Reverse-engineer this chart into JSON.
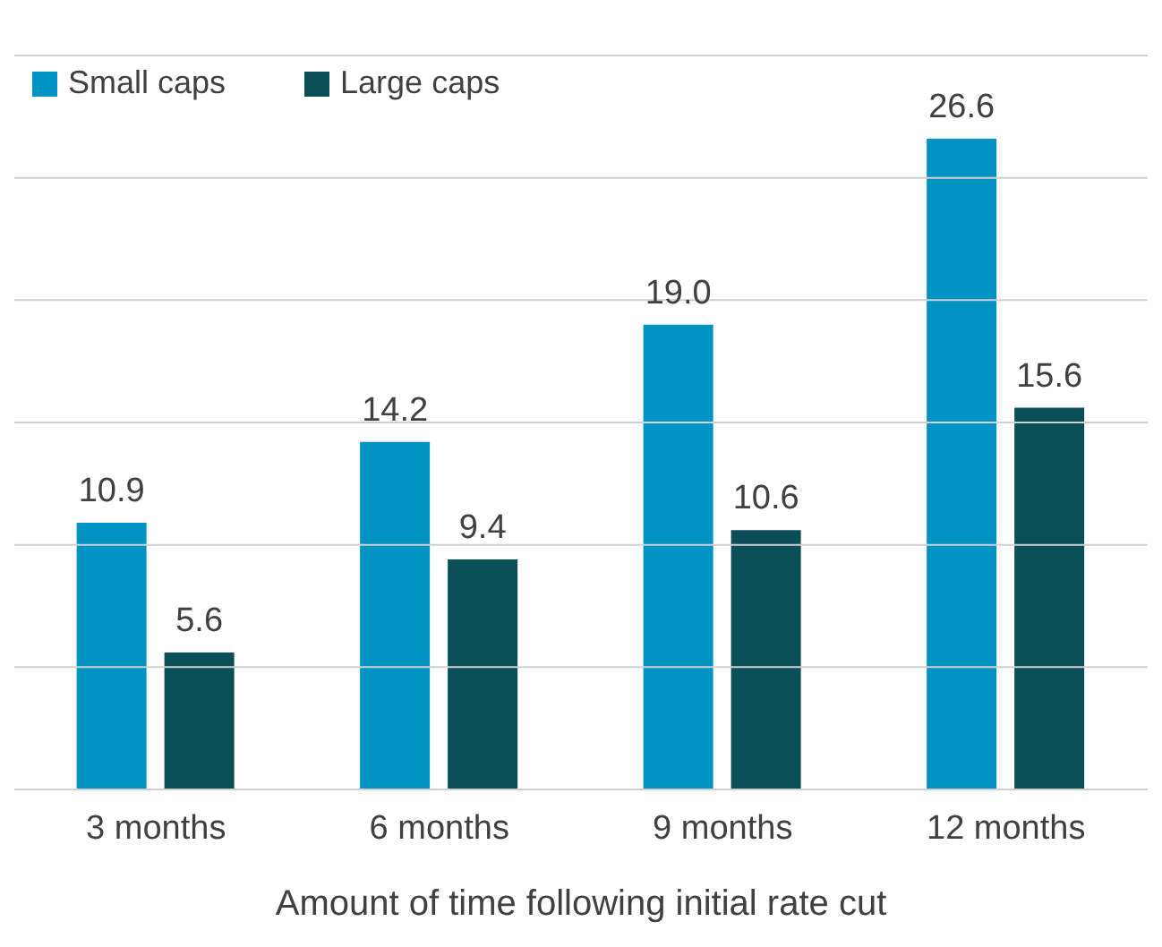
{
  "chart_data": {
    "type": "bar",
    "xlabel": "Amount of time following initial rate cut",
    "categories": [
      "3 months",
      "6 months",
      "9 months",
      "12 months"
    ],
    "series": [
      {
        "name": "Small caps",
        "color": "#0093c4",
        "values": [
          10.9,
          14.2,
          19.0,
          26.6
        ],
        "value_labels": [
          "10.9",
          "14.2",
          "19.0",
          "26.6"
        ]
      },
      {
        "name": "Large caps",
        "color": "#0a4f57",
        "values": [
          5.6,
          9.4,
          10.6,
          15.6
        ],
        "value_labels": [
          "5.6",
          "9.4",
          "10.6",
          "15.6"
        ]
      }
    ],
    "ylim": [
      0,
      30
    ],
    "yticks": [
      {
        "value": 0,
        "label": null
      },
      {
        "value": 5,
        "label": null
      },
      {
        "value": 10,
        "label": null
      },
      {
        "value": 15,
        "label": null
      },
      {
        "value": 20,
        "label": null
      },
      {
        "value": 25,
        "label": null
      },
      {
        "value": 30,
        "label": null
      }
    ],
    "grid": "y",
    "legend": "top left",
    "tick_labels": "x"
  }
}
